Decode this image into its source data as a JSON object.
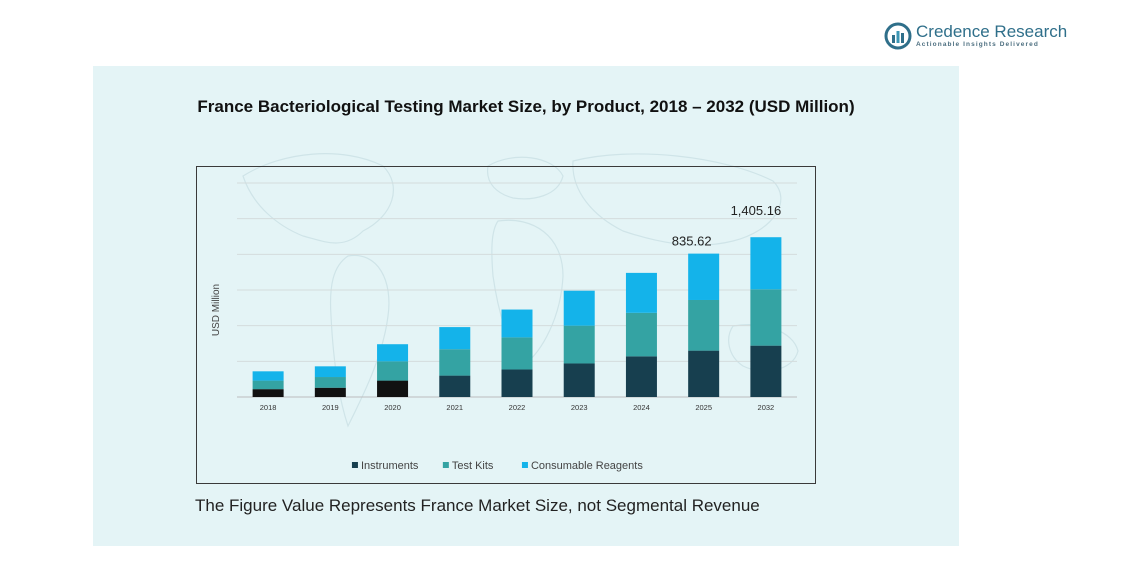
{
  "brand": {
    "name": "Credence Research",
    "tagline": "Actionable Insights Delivered",
    "logo_icon": "credence-logo-icon",
    "color": "#2f6f8a"
  },
  "footnote": "The Figure Value Represents France Market Size, not Segmental Revenue",
  "chart_data": {
    "type": "bar",
    "stacked": true,
    "title": "France Bacteriological  Testing Market Size, by Product, 2018 – 2032 (USD Million)",
    "xlabel": "",
    "ylabel": "USD Million",
    "categories": [
      "2018",
      "2019",
      "2020",
      "2021",
      "2022",
      "2023",
      "2024",
      "2025",
      "2032"
    ],
    "series": [
      {
        "name": "Instruments",
        "color": "#173f4f",
        "values": [
          55,
          65,
          115,
          150,
          193,
          235,
          285,
          325,
          360
        ]
      },
      {
        "name": "Test Kits",
        "color": "#34a3a3",
        "values": [
          60,
          75,
          135,
          185,
          225,
          265,
          305,
          355,
          395
        ]
      },
      {
        "name": "Consumable Reagents",
        "color": "#14b3ea",
        "values": [
          65,
          75,
          120,
          155,
          195,
          245,
          280,
          325,
          365
        ]
      }
    ],
    "data_labels": [
      {
        "category": "2025",
        "text": "835.62"
      },
      {
        "category": "2032",
        "text": "1,405.16"
      }
    ],
    "first_bar_colors": {
      "2018": "#111111",
      "2019": "#111111",
      "2020": "#111111"
    },
    "ylim": [
      0,
      1500
    ],
    "grid": true,
    "legend_position": "bottom",
    "panel_color": "#e4f4f6"
  }
}
